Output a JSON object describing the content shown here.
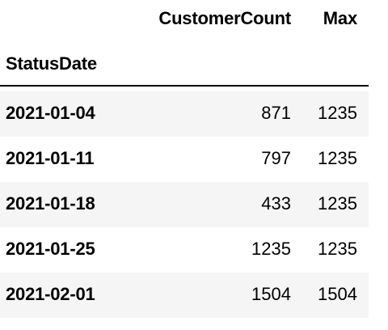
{
  "table": {
    "columns": [
      "CustomerCount",
      "Max"
    ],
    "index_name": "StatusDate",
    "rows": [
      {
        "index": "2021-01-04",
        "CustomerCount": "871",
        "Max": "1235"
      },
      {
        "index": "2021-01-11",
        "CustomerCount": "797",
        "Max": "1235"
      },
      {
        "index": "2021-01-18",
        "CustomerCount": "433",
        "Max": "1235"
      },
      {
        "index": "2021-01-25",
        "CustomerCount": "1235",
        "Max": "1235"
      },
      {
        "index": "2021-02-01",
        "CustomerCount": "1504",
        "Max": "1504"
      }
    ]
  },
  "colors": {
    "stripe": "#f5f5f5",
    "text": "#000000",
    "rule": "#000000"
  }
}
